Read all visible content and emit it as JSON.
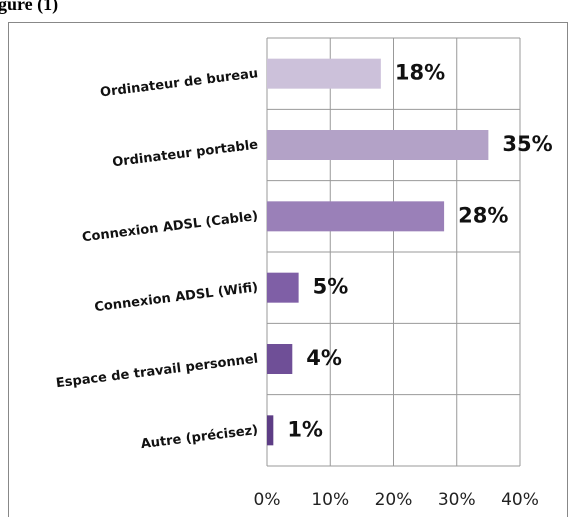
{
  "figure_label": "gure (1)",
  "chart_data": {
    "type": "hbar",
    "categories": [
      "Ordinateur  de bureau",
      "Ordinateur portable",
      "Connexion  ADSL (Cable)",
      "Connexion  ADSL (Wifi)",
      "Espace de travail personnel",
      "Autre (précisez)"
    ],
    "values": [
      18,
      35,
      28,
      5,
      4,
      1
    ],
    "value_labels": [
      "18%",
      "35%",
      "28%",
      "5%",
      "4%",
      "1%"
    ],
    "colors": [
      "#ccc1da",
      "#b3a2c7",
      "#9a80b8",
      "#7f5fa6",
      "#6f4f97",
      "#5d3d85"
    ],
    "xlim": [
      0,
      40
    ],
    "xticks": [
      {
        "value": 0,
        "label": "0%"
      },
      {
        "value": 10,
        "label": "10%"
      },
      {
        "value": 20,
        "label": "20%"
      },
      {
        "value": 30,
        "label": "30%"
      },
      {
        "value": 40,
        "label": "40%"
      }
    ],
    "grid": true
  }
}
